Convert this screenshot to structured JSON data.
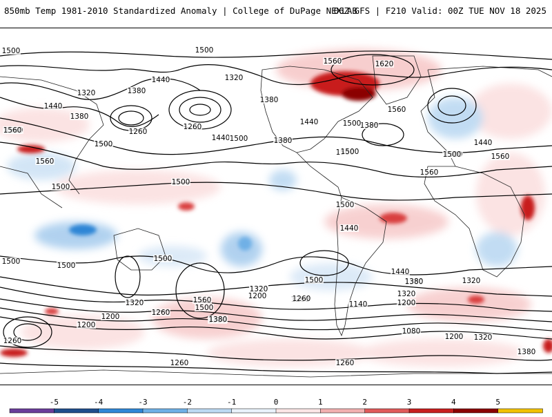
{
  "header": {
    "title_left": "850mb Temp 1981-2010 Standardized Anomaly | College of DuPage NEXLAB",
    "title_right": "06Z GFS | F210 Valid: 00Z TUE NOV 18 2025"
  },
  "colorbar": {
    "ticks": [
      "-5",
      "-4",
      "-3",
      "-2",
      "-1",
      "0",
      "1",
      "2",
      "3",
      "4",
      "5"
    ],
    "colors": [
      "#6a3d9a",
      "#1f4e8c",
      "#2f86d6",
      "#6fb0e6",
      "#bcd9f2",
      "#e9f2fb",
      "#fbe6e6",
      "#f2b0b0",
      "#e05a5a",
      "#c81e1e",
      "#8b0000",
      "#f2c200"
    ]
  },
  "contour_labels": [
    "1500",
    "1500",
    "1560",
    "1620",
    "1440",
    "1320",
    "1380",
    "1320",
    "1380",
    "1440",
    "1380",
    "1260",
    "1260",
    "1440",
    "1500",
    "1380",
    "1560",
    "1560",
    "1440",
    "1380",
    "1500",
    "1560",
    "1500",
    "1560",
    "1500",
    "1500",
    "1500",
    "1560",
    "1500",
    "1320",
    "1380",
    "1440",
    "1500",
    "1500",
    "1500",
    "1500",
    "1440",
    "1380",
    "1320",
    "1260",
    "1200",
    "1380",
    "1320",
    "1260",
    "1200",
    "1560",
    "1500",
    "1380",
    "1320",
    "1200",
    "1260",
    "1140",
    "1320",
    "1200",
    "1080",
    "1200",
    "1320",
    "1380",
    "1260",
    "1260",
    "1500",
    "1440",
    "1500",
    "1500",
    "1560",
    "1260"
  ]
}
